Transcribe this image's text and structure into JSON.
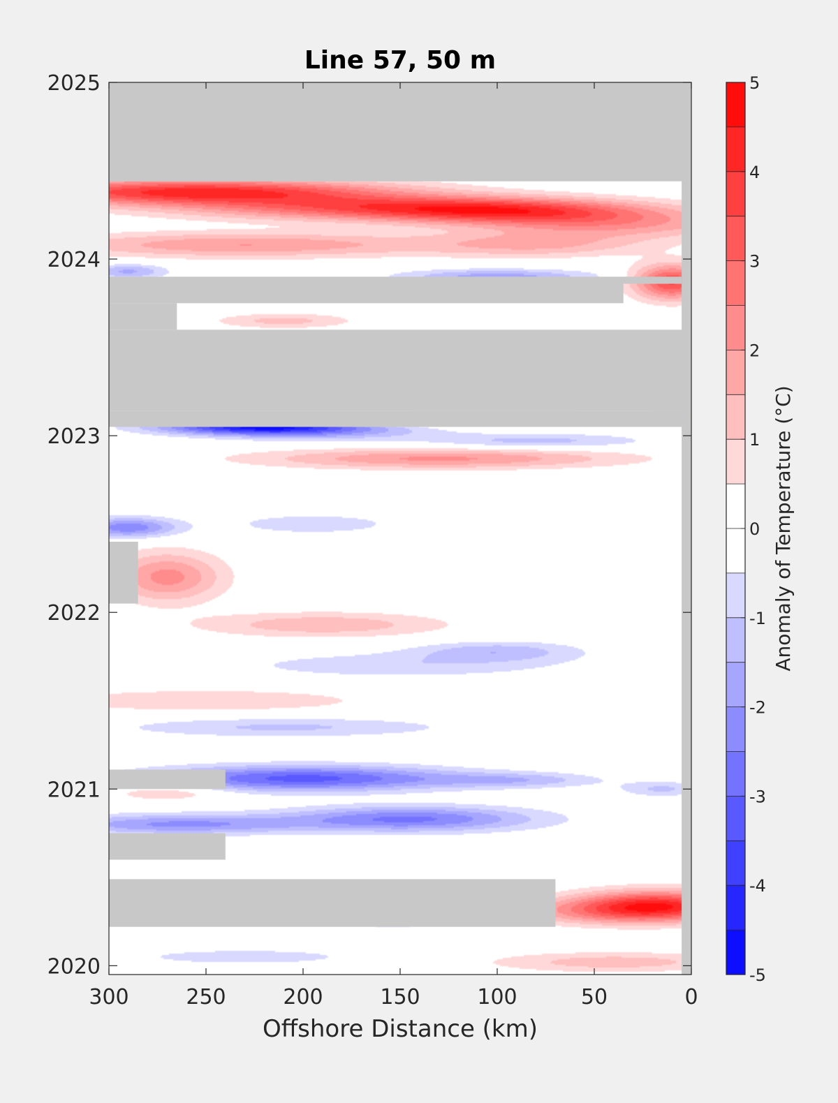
{
  "chart_data": {
    "type": "heatmap",
    "title": "Line 57, 50 m",
    "xlabel": "Offshore Distance (km)",
    "ylabel": "",
    "xlim": [
      300,
      0
    ],
    "ylim": [
      2019.95,
      2025
    ],
    "x_reversed": true,
    "x_ticks": [
      300,
      250,
      200,
      150,
      100,
      50,
      0
    ],
    "y_ticks": [
      2020,
      2021,
      2022,
      2023,
      2024,
      2025
    ],
    "colorbar": {
      "label": "Anomaly of Temperature (°C)",
      "range": [
        -5,
        5
      ],
      "step": 0.5,
      "ticks": [
        -5,
        -4,
        -3,
        -2,
        -1,
        0,
        1,
        2,
        3,
        4,
        5
      ],
      "neg_color": "#0000ff",
      "pos_color": "#ff0000",
      "mid_color": "#ffffff"
    },
    "missing_color": "#c8c8c8",
    "missing_regions": [
      {
        "x": [
          300,
          0
        ],
        "y": [
          2024.44,
          2025
        ]
      },
      {
        "x": [
          300,
          5
        ],
        "y": [
          2023.86,
          2023.9
        ]
      },
      {
        "x": [
          300,
          35
        ],
        "y": [
          2023.75,
          2023.86
        ]
      },
      {
        "x": [
          300,
          265
        ],
        "y": [
          2023.6,
          2023.75
        ]
      },
      {
        "x": [
          300,
          0
        ],
        "y": [
          2023.14,
          2023.6
        ]
      },
      {
        "x": [
          300,
          5
        ],
        "y": [
          2023.05,
          2023.14
        ]
      },
      {
        "x": [
          300,
          285
        ],
        "y": [
          2022.05,
          2022.4
        ]
      },
      {
        "x": [
          300,
          240
        ],
        "y": [
          2021,
          2021.11
        ]
      },
      {
        "x": [
          300,
          240
        ],
        "y": [
          2020.6,
          2020.75
        ]
      },
      {
        "x": [
          300,
          70
        ],
        "y": [
          2020.22,
          2020.49
        ]
      },
      {
        "x": [
          5,
          0
        ],
        "y": [
          2019.95,
          2025
        ]
      }
    ],
    "anomaly_features": [
      {
        "x": 255,
        "y": 2024.38,
        "sx": 70,
        "sy": 0.05,
        "value": 4.2
      },
      {
        "x": 165,
        "y": 2024.29,
        "sx": 70,
        "sy": 0.05,
        "value": 2.8
      },
      {
        "x": 95,
        "y": 2024.27,
        "sx": 50,
        "sy": 0.05,
        "value": 2.6
      },
      {
        "x": 40,
        "y": 2024.2,
        "sx": 50,
        "sy": 0.06,
        "value": 1.9
      },
      {
        "x": 230,
        "y": 2024.08,
        "sx": 70,
        "sy": 0.05,
        "value": 2.0
      },
      {
        "x": 80,
        "y": 2024.08,
        "sx": 40,
        "sy": 0.05,
        "value": 1.4
      },
      {
        "x": 10,
        "y": 2023.87,
        "sx": 14,
        "sy": 0.07,
        "value": 3.6
      },
      {
        "x": 100,
        "y": 2023.9,
        "sx": 35,
        "sy": 0.03,
        "value": -1.8
      },
      {
        "x": 290,
        "y": 2023.93,
        "sx": 14,
        "sy": 0.03,
        "value": -1.6
      },
      {
        "x": 210,
        "y": 2023.65,
        "sx": 25,
        "sy": 0.03,
        "value": 1.2
      },
      {
        "x": 225,
        "y": 2023.05,
        "sx": 35,
        "sy": 0.03,
        "value": -3.8
      },
      {
        "x": 190,
        "y": 2023.03,
        "sx": 40,
        "sy": 0.04,
        "value": -1.6
      },
      {
        "x": 100,
        "y": 2023.1,
        "sx": 50,
        "sy": 0.03,
        "value": 1.8
      },
      {
        "x": 10,
        "y": 2023.1,
        "sx": 20,
        "sy": 0.03,
        "value": -2.0
      },
      {
        "x": 130,
        "y": 2022.87,
        "sx": 65,
        "sy": 0.04,
        "value": 2.1
      },
      {
        "x": 80,
        "y": 2022.97,
        "sx": 40,
        "sy": 0.03,
        "value": -1.2
      },
      {
        "x": 290,
        "y": 2022.48,
        "sx": 18,
        "sy": 0.04,
        "value": -2.4
      },
      {
        "x": 270,
        "y": 2022.2,
        "sx": 20,
        "sy": 0.1,
        "value": 2.2
      },
      {
        "x": 195,
        "y": 2022.5,
        "sx": 30,
        "sy": 0.04,
        "value": -0.9
      },
      {
        "x": 190,
        "y": 2021.93,
        "sx": 45,
        "sy": 0.05,
        "value": 1.4
      },
      {
        "x": 150,
        "y": 2021.7,
        "sx": 60,
        "sy": 0.05,
        "value": -0.9
      },
      {
        "x": 100,
        "y": 2021.78,
        "sx": 30,
        "sy": 0.04,
        "value": -1.3
      },
      {
        "x": 250,
        "y": 2021.5,
        "sx": 65,
        "sy": 0.05,
        "value": 0.9
      },
      {
        "x": 210,
        "y": 2021.35,
        "sx": 60,
        "sy": 0.04,
        "value": -1.1
      },
      {
        "x": 200,
        "y": 2021.06,
        "sx": 55,
        "sy": 0.05,
        "value": -3.2
      },
      {
        "x": 145,
        "y": 2020.83,
        "sx": 45,
        "sy": 0.05,
        "value": -2.6
      },
      {
        "x": 265,
        "y": 2020.8,
        "sx": 45,
        "sy": 0.04,
        "value": -2.1
      },
      {
        "x": 90,
        "y": 2021.05,
        "sx": 30,
        "sy": 0.03,
        "value": -1.2
      },
      {
        "x": 15,
        "y": 2021.0,
        "sx": 15,
        "sy": 0.03,
        "value": -1.1
      },
      {
        "x": 270,
        "y": 2020.98,
        "sx": 20,
        "sy": 0.03,
        "value": 1.2
      },
      {
        "x": 18,
        "y": 2020.34,
        "sx": 30,
        "sy": 0.06,
        "value": 4.1
      },
      {
        "x": 55,
        "y": 2020.3,
        "sx": 40,
        "sy": 0.05,
        "value": 1.4
      },
      {
        "x": 150,
        "y": 2020.28,
        "sx": 40,
        "sy": 0.04,
        "value": -1.5
      },
      {
        "x": 230,
        "y": 2020.05,
        "sx": 40,
        "sy": 0.03,
        "value": -0.9
      },
      {
        "x": 40,
        "y": 2020.02,
        "sx": 45,
        "sy": 0.04,
        "value": 1.3
      }
    ]
  }
}
